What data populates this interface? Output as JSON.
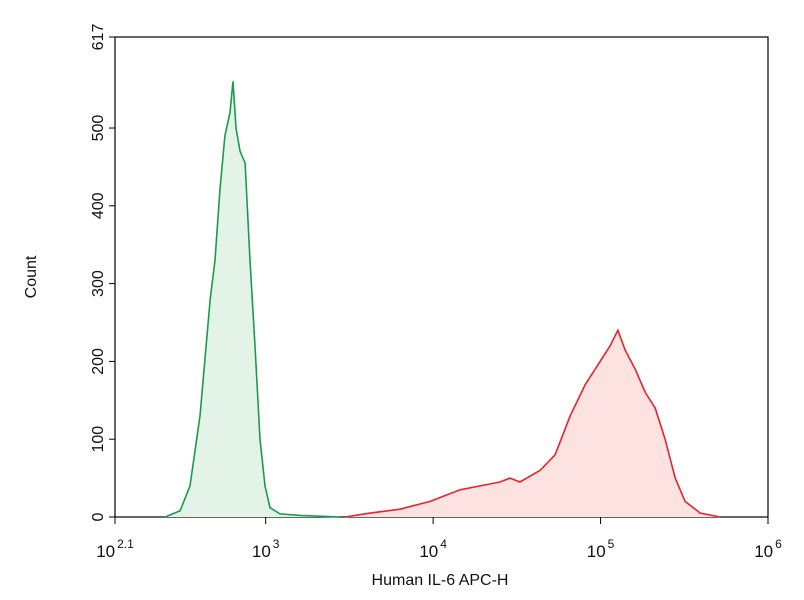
{
  "chart_data": {
    "type": "histogram-overlay",
    "x_label": "Human IL-6 APC-H",
    "y_label": "Count",
    "xscale": "log",
    "xlim": [
      125.89,
      1000000
    ],
    "ylim": [
      0,
      617
    ],
    "xticks": [
      {
        "value": 125.89,
        "label": "10",
        "exponent": "2.1"
      },
      {
        "value": 1000,
        "label": "10",
        "exponent": "3"
      },
      {
        "value": 10000,
        "label": "10",
        "exponent": "4"
      },
      {
        "value": 100000,
        "label": "10",
        "exponent": "5"
      },
      {
        "value": 1000000,
        "label": "10",
        "exponent": "6"
      }
    ],
    "yticks": [
      0,
      100,
      200,
      300,
      400,
      500,
      617
    ],
    "series": [
      {
        "color": "#1a9b4a",
        "fill": "#e4f3e8",
        "x": [
          251,
          308,
          353,
          405,
          466,
          498,
          533,
          571,
          612,
          638,
          665,
          703,
          753,
          806,
          863,
          925,
          991,
          1061,
          1218,
          1604,
          2780
        ],
        "values": [
          0,
          8,
          40,
          130,
          280,
          330,
          420,
          490,
          520,
          560,
          500,
          470,
          455,
          330,
          220,
          100,
          40,
          12,
          4,
          2,
          0
        ]
      },
      {
        "color": "#e8232a",
        "fill": "#fde2e2",
        "x": [
          2979,
          4200,
          6350,
          9590,
          14500,
          19100,
          25100,
          28800,
          33000,
          43600,
          53500,
          65800,
          80900,
          99300,
          114000,
          127000,
          140000,
          161000,
          185000,
          212000,
          243000,
          279000,
          320000,
          394000,
          518000
        ],
        "values": [
          0,
          5,
          10,
          20,
          35,
          40,
          45,
          50,
          45,
          60,
          80,
          130,
          170,
          200,
          220,
          240,
          215,
          190,
          160,
          140,
          100,
          50,
          20,
          5,
          0
        ]
      }
    ]
  }
}
